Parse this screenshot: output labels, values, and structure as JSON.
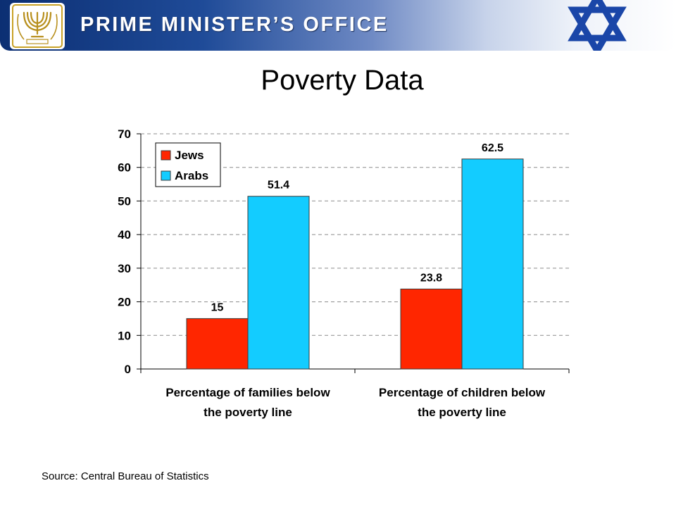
{
  "header": {
    "org_title": "PRIME MINISTER’S OFFICE",
    "emblem_icon": "menorah-emblem-icon",
    "flag_icon": "star-of-david-icon",
    "colors": {
      "banner_dark": "#0c2f73",
      "star_blue": "#1a46a8"
    }
  },
  "slide": {
    "title": "Poverty Data",
    "source": "Source: Central Bureau of Statistics"
  },
  "chart_data": {
    "type": "bar",
    "categories": [
      [
        "Percentage of families below",
        "the poverty line"
      ],
      [
        "Percentage of children below",
        "the poverty line"
      ]
    ],
    "series": [
      {
        "name": "Jews",
        "values": [
          15,
          23.8
        ],
        "labels": [
          "15",
          "23.8"
        ],
        "color": "#ff2600"
      },
      {
        "name": "Arabs",
        "values": [
          51.4,
          62.5
        ],
        "labels": [
          "51.4",
          "62.5"
        ],
        "color": "#13ccff"
      }
    ],
    "ylim": [
      0,
      70
    ],
    "yticks": [
      0,
      10,
      20,
      30,
      40,
      50,
      60,
      70
    ],
    "grid": true,
    "legend_position": "top-left"
  }
}
